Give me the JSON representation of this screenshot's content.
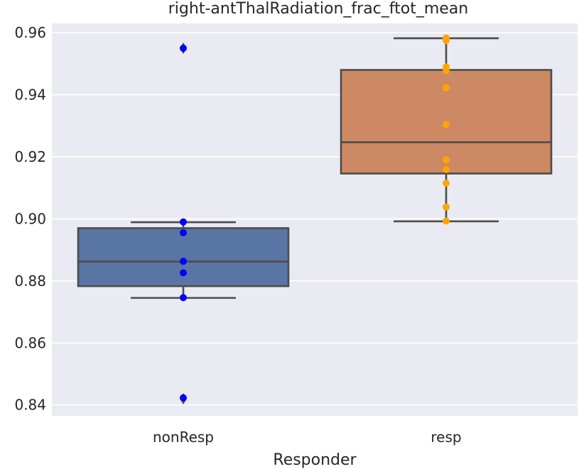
{
  "chart_data": {
    "type": "box",
    "title": "right-antThalRadiation_frac_ftot_mean",
    "xlabel": "Responder",
    "ylabel": "",
    "ylim": [
      0.8365,
      0.963
    ],
    "yticks": [
      0.84,
      0.86,
      0.88,
      0.9,
      0.92,
      0.94,
      0.96
    ],
    "ytick_labels": [
      "0.84",
      "0.86",
      "0.88",
      "0.90",
      "0.92",
      "0.94",
      "0.96"
    ],
    "grid": true,
    "categories": [
      "nonResp",
      "resp"
    ],
    "series": [
      {
        "category": "nonResp",
        "box_color": "#5975a4",
        "point_color": "#0000ff",
        "whisker_low": 0.8745,
        "q1": 0.8783,
        "median": 0.8862,
        "q3": 0.897,
        "whisker_high": 0.8989,
        "outliers": [
          0.955,
          0.842
        ],
        "points": [
          0.955,
          0.899,
          0.8955,
          0.8863,
          0.8826,
          0.8746,
          0.8423
        ]
      },
      {
        "category": "resp",
        "box_color": "#cc8963",
        "point_color": "#ffa500",
        "whisker_low": 0.8992,
        "q1": 0.9146,
        "median": 0.9247,
        "q3": 0.948,
        "whisker_high": 0.9582,
        "outliers": [],
        "points": [
          0.9583,
          0.9575,
          0.949,
          0.9478,
          0.9422,
          0.9304,
          0.919,
          0.9159,
          0.9115,
          0.9038,
          0.8993
        ]
      }
    ]
  }
}
